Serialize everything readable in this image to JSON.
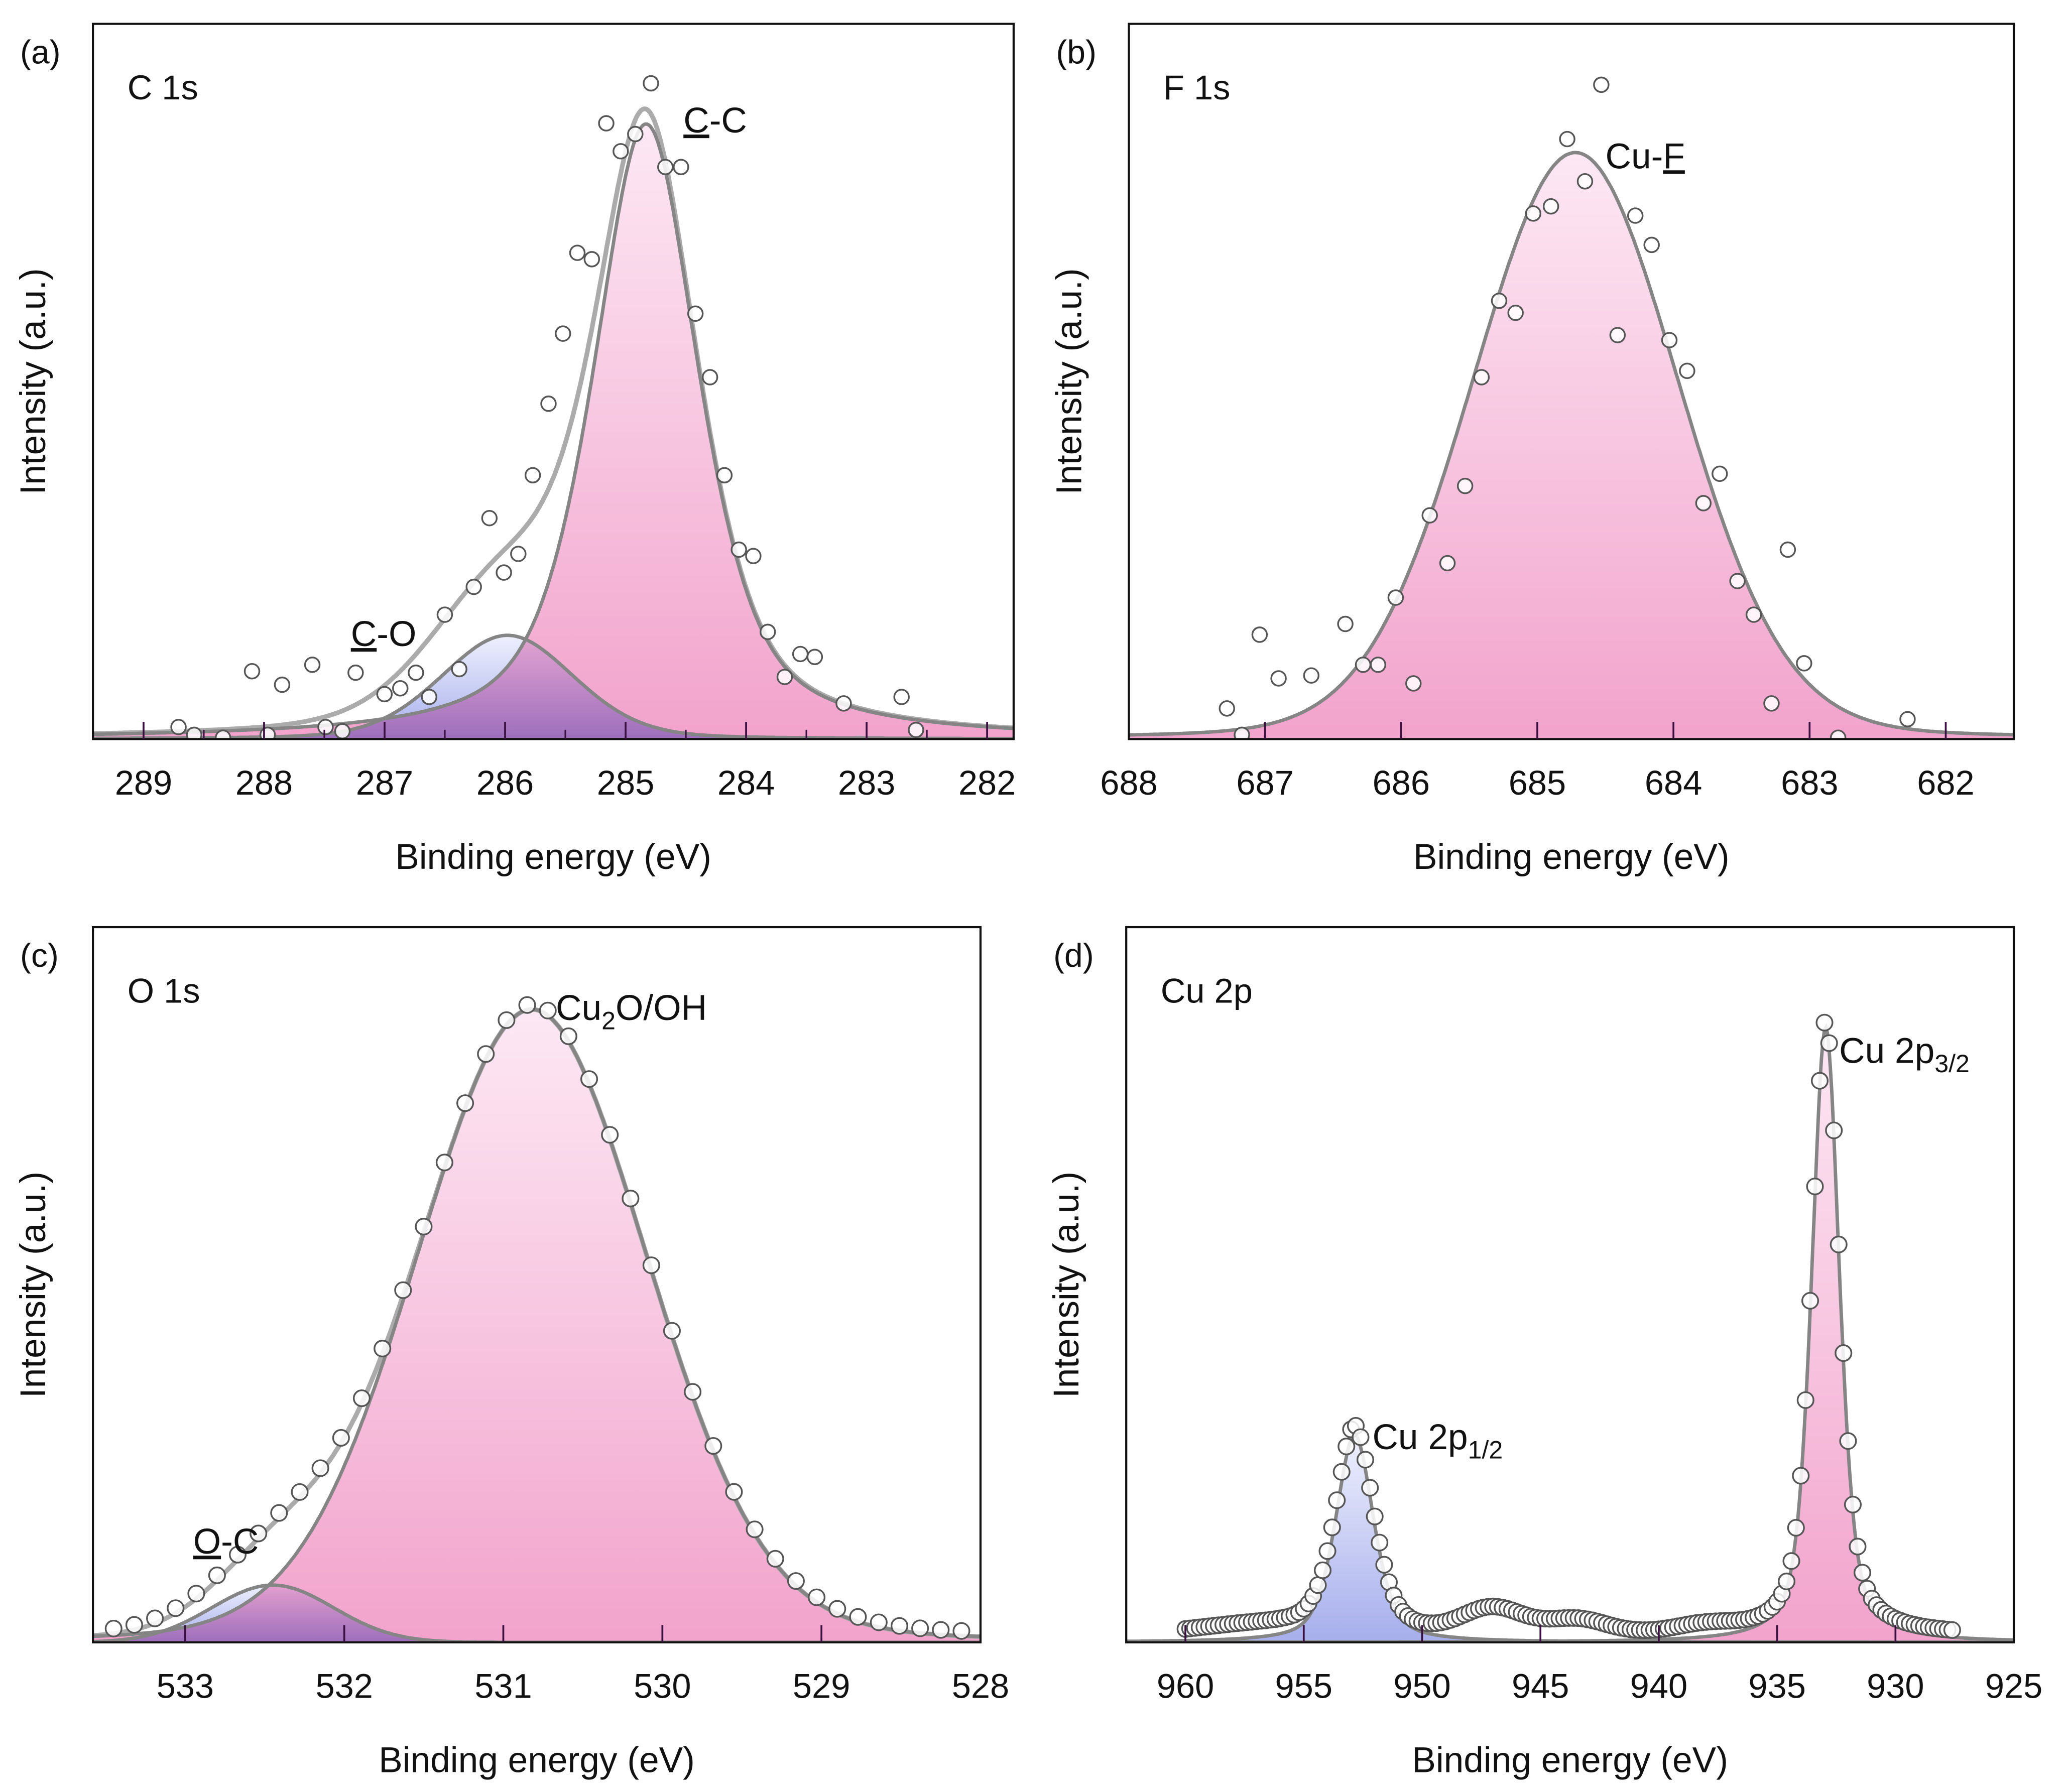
{
  "chart_data": [
    {
      "type": "scatter",
      "panel_letter": "(a)",
      "title": "C 1s",
      "xlabel": "Binding energy (eV)",
      "ylabel": "Intensity (a.u.)",
      "xlim": [
        289.42,
        281.78
      ],
      "ylim": [
        0,
        1
      ],
      "xticks": [
        289,
        288,
        287,
        286,
        285,
        284,
        283,
        282
      ],
      "minor_ticks": true,
      "show_envelope": true,
      "peaks": [
        {
          "name": "C-O",
          "center": 285.98,
          "height": 0.145,
          "fwhm": 1.3,
          "eta": 0.2,
          "fill": "blue"
        },
        {
          "name": "C-C",
          "center": 284.83,
          "height": 0.86,
          "fwhm": 1.05,
          "eta": 0.6,
          "fill": "pink"
        }
      ],
      "annotations": [
        {
          "parts": [
            {
              "t": "C",
              "u": true
            },
            {
              "t": "-C"
            }
          ],
          "x": 284.52,
          "y": 0.848
        },
        {
          "parts": [
            {
              "t": "C",
              "u": true
            },
            {
              "t": "-O"
            }
          ],
          "x": 287.28,
          "y": 0.13
        }
      ],
      "points": [
        [
          288.71,
          0.015
        ],
        [
          288.58,
          0.004
        ],
        [
          288.34,
          0
        ],
        [
          288.1,
          0.093
        ],
        [
          287.97,
          0.004
        ],
        [
          287.85,
          0.074
        ],
        [
          287.6,
          0.102
        ],
        [
          287.49,
          0.015
        ],
        [
          287.35,
          0.009
        ],
        [
          287.24,
          0.091
        ],
        [
          287.0,
          0.061
        ],
        [
          286.87,
          0.069
        ],
        [
          286.74,
          0.091
        ],
        [
          286.63,
          0.057
        ],
        [
          286.5,
          0.172
        ],
        [
          286.38,
          0.096
        ],
        [
          286.26,
          0.211
        ],
        [
          286.13,
          0.307
        ],
        [
          286.01,
          0.231
        ],
        [
          285.89,
          0.257
        ],
        [
          285.77,
          0.367
        ],
        [
          285.64,
          0.467
        ],
        [
          285.52,
          0.565
        ],
        [
          285.4,
          0.678
        ],
        [
          285.28,
          0.669
        ],
        [
          285.16,
          0.859
        ],
        [
          285.04,
          0.82
        ],
        [
          284.92,
          0.844
        ],
        [
          284.79,
          0.915
        ],
        [
          284.67,
          0.798
        ],
        [
          284.54,
          0.798
        ],
        [
          284.42,
          0.593
        ],
        [
          284.3,
          0.504
        ],
        [
          284.18,
          0.367
        ],
        [
          284.06,
          0.263
        ],
        [
          283.94,
          0.254
        ],
        [
          283.82,
          0.148
        ],
        [
          283.68,
          0.085
        ],
        [
          283.55,
          0.117
        ],
        [
          283.43,
          0.113
        ],
        [
          283.19,
          0.048
        ],
        [
          282.71,
          0.057
        ],
        [
          282.59,
          0.011
        ]
      ]
    },
    {
      "type": "scatter",
      "panel_letter": "(b)",
      "title": "F 1s",
      "xlabel": "Binding energy (eV)",
      "ylabel": "Intensity (a.u.)",
      "xlim": [
        688,
        681.5
      ],
      "ylim": [
        0,
        1
      ],
      "xticks": [
        688,
        687,
        686,
        685,
        684,
        683,
        682
      ],
      "minor_ticks": false,
      "show_envelope": false,
      "peaks": [
        {
          "name": "Cu-F",
          "center": 684.72,
          "height": 0.82,
          "fwhm": 1.8,
          "eta": 0.1,
          "fill": "pink"
        }
      ],
      "annotations": [
        {
          "parts": [
            {
              "t": "Cu-"
            },
            {
              "t": "F",
              "u": true
            }
          ],
          "x": 684.5,
          "y": 0.798
        }
      ],
      "points": [
        [
          687.28,
          0.041
        ],
        [
          687.17,
          0.004
        ],
        [
          687.04,
          0.144
        ],
        [
          686.9,
          0.083
        ],
        [
          686.66,
          0.087
        ],
        [
          686.41,
          0.159
        ],
        [
          686.28,
          0.102
        ],
        [
          686.17,
          0.102
        ],
        [
          686.04,
          0.196
        ],
        [
          685.91,
          0.076
        ],
        [
          685.79,
          0.311
        ],
        [
          685.66,
          0.244
        ],
        [
          685.53,
          0.352
        ],
        [
          685.41,
          0.504
        ],
        [
          685.28,
          0.611
        ],
        [
          685.16,
          0.594
        ],
        [
          685.03,
          0.733
        ],
        [
          684.9,
          0.743
        ],
        [
          684.78,
          0.837
        ],
        [
          684.65,
          0.778
        ],
        [
          684.53,
          0.913
        ],
        [
          684.41,
          0.563
        ],
        [
          684.28,
          0.73
        ],
        [
          684.16,
          0.689
        ],
        [
          684.03,
          0.556
        ],
        [
          683.9,
          0.513
        ],
        [
          683.78,
          0.328
        ],
        [
          683.66,
          0.369
        ],
        [
          683.53,
          0.219
        ],
        [
          683.41,
          0.172
        ],
        [
          683.28,
          0.048
        ],
        [
          683.16,
          0.263
        ],
        [
          683.04,
          0.104
        ],
        [
          682.79,
          0.0
        ],
        [
          682.28,
          0.026
        ]
      ]
    },
    {
      "type": "scatter",
      "panel_letter": "(c)",
      "title": "O 1s",
      "xlabel": "Binding energy (eV)",
      "ylabel": "Intensity (a.u.)",
      "xlim": [
        533.58,
        528
      ],
      "ylim": [
        0,
        1
      ],
      "xticks": [
        533,
        532,
        531,
        530,
        529,
        528
      ],
      "minor_ticks": false,
      "show_envelope": true,
      "peaks": [
        {
          "name": "O-C",
          "center": 532.45,
          "height": 0.08,
          "fwhm": 0.9,
          "eta": 0.0,
          "fill": "blue"
        },
        {
          "name": "Cu2O/OH",
          "center": 530.82,
          "height": 0.885,
          "fwhm": 1.72,
          "eta": 0.1,
          "fill": "pink"
        }
      ],
      "annotations": [
        {
          "parts": [
            {
              "t": "Cu"
            },
            {
              "t": "2",
              "sub": true
            },
            {
              "t": "O/OH"
            }
          ],
          "x": 530.67,
          "y": 0.87
        },
        {
          "parts": [
            {
              "t": "O",
              "u": true
            },
            {
              "t": "-C"
            }
          ],
          "x": 532.95,
          "y": 0.124
        }
      ],
      "point_range": [
        533.45,
        528.05
      ],
      "point_step": 0.13,
      "background": []
    },
    {
      "type": "scatter",
      "panel_letter": "(d)",
      "title": "Cu 2p",
      "xlabel": "Binding energy (eV)",
      "ylabel": "Intensity (a.u.)",
      "xlim": [
        962.5,
        925
      ],
      "ylim": [
        0,
        1
      ],
      "xticks": [
        960,
        955,
        950,
        945,
        940,
        935,
        930,
        925
      ],
      "minor_ticks": false,
      "show_envelope": false,
      "peaks": [
        {
          "name": "Cu 2p1/2",
          "center": 952.85,
          "height": 0.29,
          "fwhm": 1.9,
          "eta": 0.5,
          "fill": "blue"
        },
        {
          "name": "Cu 2p3/2",
          "center": 932.95,
          "height": 0.86,
          "fwhm": 1.4,
          "eta": 0.5,
          "fill": "pink"
        }
      ],
      "annotations": [
        {
          "parts": [
            {
              "t": "Cu 2p"
            },
            {
              "t": "3/2",
              "sub": true
            }
          ],
          "x": 932.38,
          "y": 0.81
        },
        {
          "parts": [
            {
              "t": "Cu 2p"
            },
            {
              "t": "1/2",
              "sub": true
            }
          ],
          "x": 952.1,
          "y": 0.27
        }
      ],
      "point_range": [
        960,
        927.5
      ],
      "point_step": 0.2,
      "background": [
        {
          "center": 947,
          "height": 0.035,
          "fwhm": 3.0
        },
        {
          "center": 943.5,
          "height": 0.02,
          "fwhm": 3.0
        },
        {
          "center": 938,
          "height": 0.01,
          "fwhm": 3.0
        },
        {
          "center": 957,
          "height": 0.012,
          "fwhm": 6.0
        }
      ]
    }
  ],
  "colors": {
    "pink_top": "#fde8f4",
    "pink_bottom": "#f2a3cc",
    "blue_top": "#eef0fd",
    "blue_bottom": "#a6aeec",
    "fit_line": "#858585",
    "envelope_line": "#ababab",
    "marker_stroke": "#555555"
  }
}
